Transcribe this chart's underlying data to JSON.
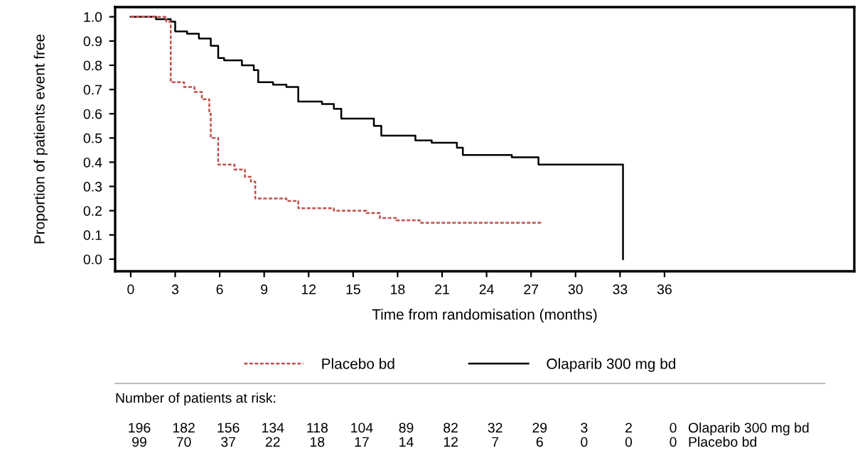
{
  "chart_data": {
    "type": "step",
    "xlabel": "Time from randomisation (months)",
    "ylabel": "Proportion of patients event free",
    "series": [
      {
        "name": "Placebo bd",
        "color": "#c0504d",
        "line_style": "dashed",
        "x": [
          0,
          2.4,
          2.7,
          3.6,
          4.3,
          4.8,
          5.3,
          5.4,
          5.9,
          7.0,
          7.7,
          8.1,
          8.4,
          10.5,
          11.3,
          13.7,
          15.9,
          16.8,
          17.9,
          19.5,
          27.8
        ],
        "values": [
          1.0,
          0.98,
          0.73,
          0.71,
          0.69,
          0.66,
          0.6,
          0.5,
          0.39,
          0.37,
          0.34,
          0.32,
          0.25,
          0.24,
          0.21,
          0.2,
          0.19,
          0.17,
          0.16,
          0.15,
          0.15
        ]
      },
      {
        "name": "Olaparib 300 mg bd",
        "color": "#000000",
        "line_style": "solid",
        "x": [
          0,
          1.7,
          2.7,
          3.0,
          3.8,
          4.6,
          5.4,
          5.9,
          6.3,
          7.5,
          8.3,
          8.6,
          9.6,
          10.5,
          11.3,
          12.9,
          13.7,
          14.2,
          16.4,
          16.9,
          19.2,
          20.3,
          22.0,
          22.4,
          25.7,
          27.5,
          33.2,
          33.2
        ],
        "values": [
          1.0,
          0.99,
          0.98,
          0.94,
          0.93,
          0.91,
          0.88,
          0.83,
          0.82,
          0.8,
          0.78,
          0.73,
          0.72,
          0.71,
          0.65,
          0.64,
          0.62,
          0.58,
          0.55,
          0.51,
          0.49,
          0.48,
          0.46,
          0.43,
          0.42,
          0.39,
          0.39,
          0.0
        ]
      }
    ],
    "xlim": [
      -1.05,
      48.8
    ],
    "xticks": [
      0,
      3,
      6,
      9,
      12,
      15,
      18,
      21,
      24,
      27,
      30,
      33,
      36
    ],
    "ylim": [
      -0.05,
      1.04
    ],
    "yticks": [
      {
        "value": 0,
        "label": "0.0"
      },
      {
        "value": 0.1,
        "label": "0.1"
      },
      {
        "value": 0.2,
        "label": "0.2"
      },
      {
        "value": 0.3,
        "label": "0.3"
      },
      {
        "value": 0.4,
        "label": "0.4"
      },
      {
        "value": 0.5,
        "label": "0.5"
      },
      {
        "value": 0.6,
        "label": "0.6"
      },
      {
        "value": 0.7,
        "label": "0.7"
      },
      {
        "value": 0.8,
        "label": "0.8"
      },
      {
        "value": 0.9,
        "label": "0.9"
      },
      {
        "value": 1.0,
        "label": "1.0"
      }
    ],
    "grid": false,
    "legend": "bottom",
    "annotations": [
      "Number of patients at risk:",
      "196 182 156 134 118 104 89 82 32 29 3 2 0",
      "Olaparib 300 mg bd",
      "99 70 37 22 18 17 14 12 7 6 0 0 0",
      "Placebo bd"
    ]
  }
}
